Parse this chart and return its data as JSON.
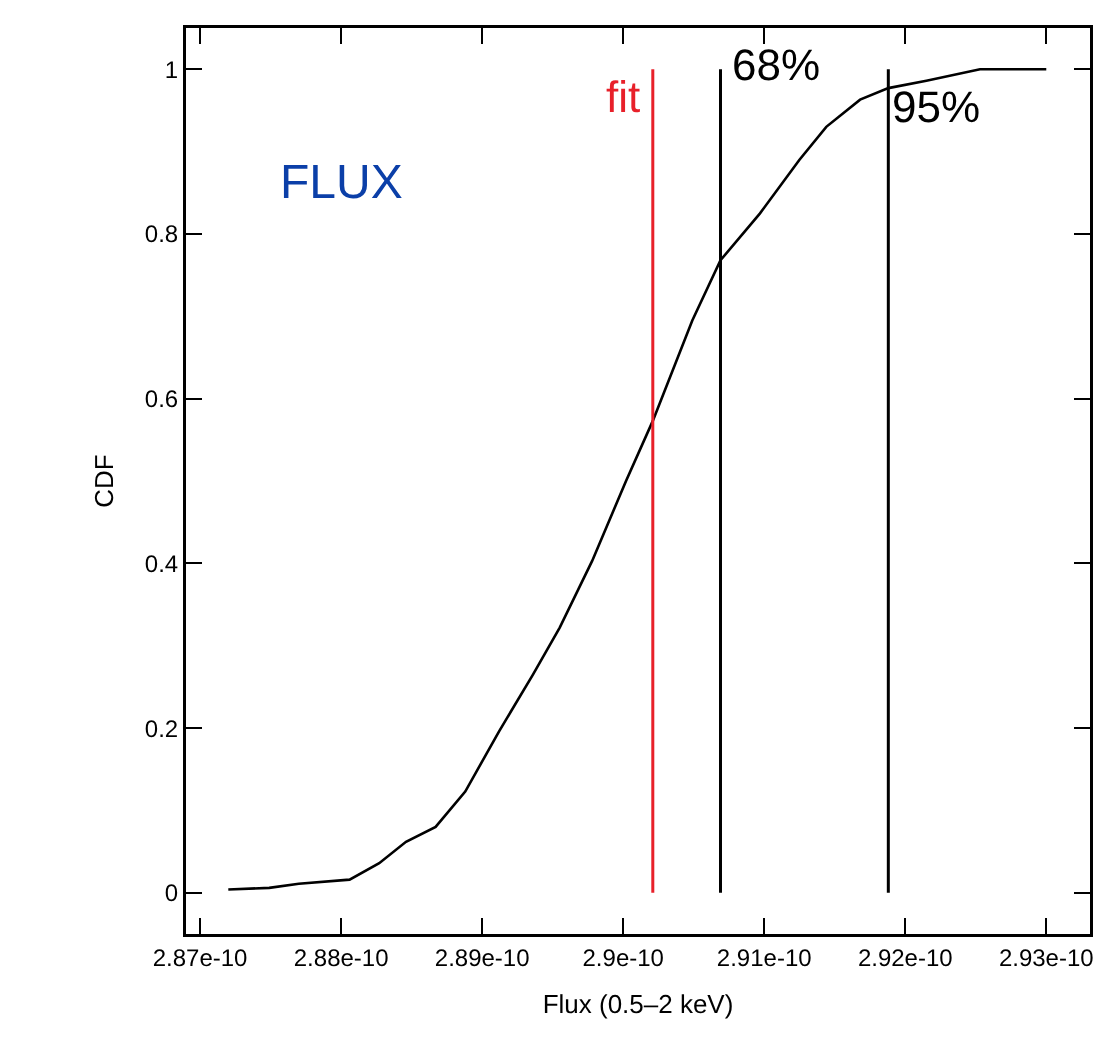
{
  "chart_data": {
    "type": "line",
    "xlabel": "Flux (0.5–2 keV)",
    "ylabel": "CDF",
    "x": [
      2.872e-10,
      2.8749e-10,
      2.877e-10,
      2.8806e-10,
      2.8827e-10,
      2.8846e-10,
      2.8867e-10,
      2.8888e-10,
      2.8912e-10,
      2.8936e-10,
      2.8955e-10,
      2.8978e-10,
      2.9002e-10,
      2.9021e-10,
      2.9049e-10,
      2.9069e-10,
      2.9097e-10,
      2.9125e-10,
      2.9144e-10,
      2.9168e-10,
      2.9188e-10,
      2.9215e-10,
      2.9253e-10,
      2.93e-10
    ],
    "series": [
      {
        "color": "#000000",
        "values": [
          0.004,
          0.006,
          0.011,
          0.016,
          0.036,
          0.062,
          0.08,
          0.123,
          0.196,
          0.265,
          0.322,
          0.403,
          0.5,
          0.573,
          0.695,
          0.768,
          0.825,
          0.89,
          0.93,
          0.963,
          0.977,
          0.986,
          1.0,
          1.0
        ]
      }
    ],
    "xlim": [
      2.869e-10,
      2.9331e-10
    ],
    "ylim": [
      -0.05,
      1.05
    ],
    "xticks": [
      {
        "value": 2.87e-10,
        "label": "2.87e-10"
      },
      {
        "value": 2.88e-10,
        "label": "2.88e-10"
      },
      {
        "value": 2.89e-10,
        "label": "2.89e-10"
      },
      {
        "value": 2.9e-10,
        "label": "2.9e-10"
      },
      {
        "value": 2.91e-10,
        "label": "2.91e-10"
      },
      {
        "value": 2.92e-10,
        "label": "2.92e-10"
      },
      {
        "value": 2.93e-10,
        "label": "2.93e-10"
      }
    ],
    "yticks": [
      0,
      0.2,
      0.4,
      0.6,
      0.8,
      1
    ],
    "ref_lines": [
      {
        "axis": "x",
        "value": 2.9021e-10,
        "color": "#e8202a"
      },
      {
        "axis": "x",
        "value": 2.9069e-10,
        "color": "#000000"
      },
      {
        "axis": "x",
        "value": 2.9188e-10,
        "color": "#000000"
      }
    ],
    "annotations": [
      "FLUX",
      {
        "text": "fit",
        "x": 2.9021e-10,
        "y": 0.93
      },
      {
        "text": "68%",
        "x": 2.9069e-10,
        "y": 0.97
      },
      {
        "text": "95%",
        "x": 2.9188e-10,
        "y": 0.92
      }
    ],
    "grid": false,
    "marker": "none",
    "line_style": "solid"
  }
}
